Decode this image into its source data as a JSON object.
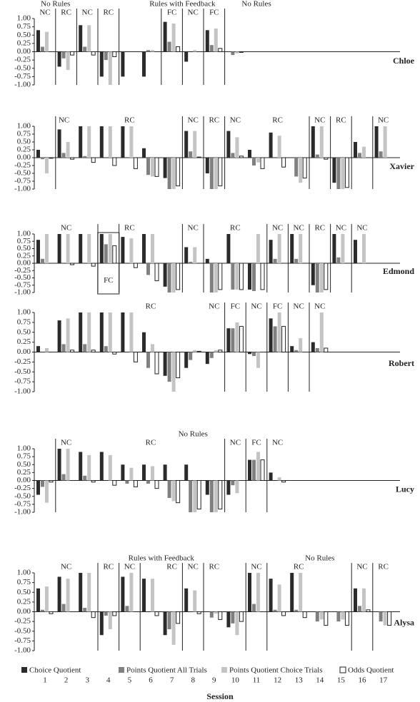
{
  "chart_data": [
    {
      "type": "bar",
      "participant": "Chloe",
      "ylim": [
        -1,
        1
      ],
      "yticks": [
        {
          "value": 1,
          "label": "1.00"
        },
        {
          "value": 0.75,
          "label": "0.75"
        },
        {
          "value": 0.5,
          "label": "0.50"
        },
        {
          "value": 0.25,
          "label": "0.25"
        },
        {
          "value": 0,
          "label": "0.00"
        },
        {
          "value": -0.25,
          "label": "-0.25"
        },
        {
          "value": -0.5,
          "label": "-0.50"
        },
        {
          "value": -0.75,
          "label": "-0.75"
        },
        {
          "value": -1,
          "label": "-1.00"
        }
      ],
      "phase_headers": [
        {
          "text": "No Rules",
          "x": 1.5
        },
        {
          "text": "Rules with Feedback",
          "x": 7.5
        },
        {
          "text": "No Rules",
          "x": 11
        }
      ],
      "annotations": [
        {
          "text": "NC",
          "x": 1
        },
        {
          "text": "RC",
          "x": 2
        },
        {
          "text": "NC",
          "x": 3
        },
        {
          "text": "RC",
          "x": 4
        },
        {
          "text": "FC",
          "x": 7
        },
        {
          "text": "NC",
          "x": 8
        },
        {
          "text": "FC",
          "x": 9
        }
      ],
      "series": [
        {
          "color": "#2b2b2b",
          "values": [
            0.65,
            -0.45,
            0.8,
            -0.75,
            -0.75,
            -0.75,
            0.9,
            -0.3,
            0.65,
            0,
            null,
            null,
            null,
            null,
            null,
            null,
            null
          ]
        },
        {
          "color": "#808080",
          "values": [
            0.15,
            -0.2,
            0.15,
            -0.25,
            0,
            0.05,
            0.3,
            0,
            0.2,
            -0.1,
            null,
            null,
            null,
            null,
            null,
            null,
            null
          ]
        },
        {
          "color": "#c4c4c4",
          "values": [
            0.6,
            -0.55,
            0.8,
            -1,
            0,
            0.05,
            0.85,
            0.05,
            0.7,
            -0.05,
            null,
            null,
            null,
            null,
            null,
            null,
            null
          ]
        },
        {
          "color": "#ffffff",
          "values": [
            0,
            -0.1,
            -0.1,
            -0.15,
            0,
            0,
            0.15,
            0,
            0.1,
            -0.02,
            null,
            null,
            null,
            null,
            null,
            null,
            null
          ]
        }
      ]
    },
    {
      "type": "bar",
      "participant": "Xavier",
      "ylim": [
        -1,
        1
      ],
      "yticks": [
        {
          "value": 1,
          "label": "1.00"
        },
        {
          "value": 0.75,
          "label": "0.75"
        },
        {
          "value": 0.5,
          "label": "0.50"
        },
        {
          "value": 0.25,
          "label": "0.25"
        },
        {
          "value": 0,
          "label": "0.00"
        },
        {
          "value": -0.25,
          "label": "-0.25"
        },
        {
          "value": -0.5,
          "label": "-0.50"
        },
        {
          "value": -0.75,
          "label": "-0.75"
        },
        {
          "value": -1,
          "label": "-1.00"
        }
      ],
      "annotations": [
        {
          "text": "NC",
          "x": 1.9
        },
        {
          "text": "RC",
          "x": 5
        },
        {
          "text": "NC",
          "x": 8
        },
        {
          "text": "RC",
          "x": 9
        },
        {
          "text": "NC",
          "x": 10
        },
        {
          "text": "RC",
          "x": 12
        },
        {
          "text": "NC",
          "x": 14
        },
        {
          "text": "RC",
          "x": 15
        },
        {
          "text": "NC",
          "x": 17
        }
      ],
      "series": [
        {
          "color": "#2b2b2b",
          "values": [
            0.25,
            0.9,
            1,
            1,
            1,
            0.3,
            -0.65,
            0.85,
            -0.5,
            0.85,
            0.25,
            0.8,
            0,
            1,
            -0.8,
            0.5,
            1
          ]
        },
        {
          "color": "#808080",
          "values": [
            -0.05,
            0.15,
            0.05,
            0,
            0,
            -0.55,
            -1,
            0.2,
            -1,
            0.15,
            -0.25,
            0,
            -0.6,
            0.1,
            -1,
            0.15,
            0.2
          ]
        },
        {
          "color": "#c4c4c4",
          "values": [
            -0.5,
            0.5,
            1,
            1,
            1,
            -0.6,
            -1,
            0.85,
            -1,
            0.65,
            -0.15,
            0.7,
            -0.8,
            1,
            -1,
            0.35,
            1
          ]
        },
        {
          "color": "#ffffff",
          "values": [
            -0.02,
            -0.05,
            -0.15,
            -0.25,
            -0.35,
            -0.6,
            -0.9,
            0.02,
            -0.9,
            0.05,
            -0.35,
            -0.3,
            -0.65,
            -0.05,
            -0.95,
            0,
            0
          ]
        }
      ]
    },
    {
      "type": "bar",
      "participant": "Edmond",
      "ylim": [
        -1,
        1
      ],
      "yticks": [
        {
          "value": 1,
          "label": "1.00"
        },
        {
          "value": 0.75,
          "label": "0.75"
        },
        {
          "value": 0.5,
          "label": "0.50"
        },
        {
          "value": 0.25,
          "label": "0.25"
        },
        {
          "value": 0,
          "label": "0.00"
        },
        {
          "value": -0.25,
          "label": "-0.25"
        },
        {
          "value": -0.5,
          "label": "-0.50"
        },
        {
          "value": -0.75,
          "label": "-0.75"
        },
        {
          "value": -1,
          "label": "-1.00"
        }
      ],
      "annotations": [
        {
          "text": "NC",
          "x": 2
        },
        {
          "text": "RC",
          "x": 5
        },
        {
          "text": "NC",
          "x": 8
        },
        {
          "text": "RC",
          "x": 10
        },
        {
          "text": "NC",
          "x": 12
        },
        {
          "text": "NC",
          "x": 13
        },
        {
          "text": "RC",
          "x": 14
        },
        {
          "text": "NC",
          "x": 15
        },
        {
          "text": "NC",
          "x": 16
        }
      ],
      "boxed_annotation": {
        "text": "FC",
        "x": 4
      },
      "series": [
        {
          "color": "#2b2b2b",
          "values": [
            0.8,
            1,
            1,
            1,
            0.9,
            1,
            -0.8,
            0.55,
            0.15,
            1,
            -0.9,
            0.8,
            1,
            -0.75,
            1,
            0.8,
            null
          ]
        },
        {
          "color": "#808080",
          "values": [
            0.15,
            0,
            0,
            0.65,
            0,
            -0.4,
            -1,
            0.05,
            -1,
            -0.9,
            -0.95,
            0.15,
            0.15,
            -1,
            0.2,
            0,
            null
          ]
        },
        {
          "color": "#c4c4c4",
          "values": [
            1,
            1,
            1,
            1,
            0.85,
            1,
            -1,
            0.55,
            -1,
            -0.9,
            1,
            1,
            1,
            -1,
            1,
            1,
            null
          ]
        },
        {
          "color": "#ffffff",
          "values": [
            0,
            -0.05,
            -0.1,
            0.6,
            -0.15,
            -0.6,
            -0.9,
            0,
            -0.9,
            -0.9,
            -0.9,
            0,
            0,
            -0.9,
            0,
            0,
            null
          ]
        }
      ]
    },
    {
      "type": "bar",
      "participant": "Robert",
      "ylim": [
        -1,
        1
      ],
      "yticks": [
        {
          "value": 1,
          "label": "1.00"
        },
        {
          "value": 0.75,
          "label": "0.75"
        },
        {
          "value": 0.5,
          "label": "0.50"
        },
        {
          "value": 0.25,
          "label": "0.25"
        },
        {
          "value": 0,
          "label": "0.00"
        },
        {
          "value": -0.25,
          "label": "-0.25"
        },
        {
          "value": -0.5,
          "label": "-0.50"
        },
        {
          "value": -0.75,
          "label": "-0.75"
        },
        {
          "value": -1,
          "label": "-1.00"
        }
      ],
      "annotations": [
        {
          "text": "RC",
          "x": 6
        },
        {
          "text": "NC",
          "x": 9
        },
        {
          "text": "FC",
          "x": 10
        },
        {
          "text": "NC",
          "x": 11
        },
        {
          "text": "FC",
          "x": 12
        },
        {
          "text": "NC",
          "x": 13
        },
        {
          "text": "NC",
          "x": 14
        }
      ],
      "series": [
        {
          "color": "#2b2b2b",
          "values": [
            0.15,
            0.8,
            1,
            1,
            1,
            0.5,
            -0.6,
            -0.4,
            -0.3,
            0.6,
            -0.05,
            0.85,
            0.15,
            0.25,
            null,
            null,
            null
          ]
        },
        {
          "color": "#808080",
          "values": [
            0,
            0.2,
            0.2,
            0.15,
            0,
            -0.4,
            -0.75,
            -0.2,
            -0.15,
            0.6,
            -0.1,
            0.65,
            0.05,
            0.1,
            null,
            null,
            null
          ]
        },
        {
          "color": "#c4c4c4",
          "values": [
            0.1,
            0.85,
            1,
            1,
            1,
            0.2,
            -1,
            0.05,
            0.05,
            0.75,
            -0.4,
            1,
            0.35,
            1,
            null,
            null,
            null
          ]
        },
        {
          "color": "#ffffff",
          "values": [
            0,
            0.05,
            0.05,
            -0.05,
            -0.25,
            -0.55,
            -0.65,
            0.02,
            0.05,
            0.65,
            0,
            0.65,
            0,
            0.1,
            null,
            null,
            null
          ]
        }
      ]
    },
    {
      "type": "bar",
      "participant": "Lucy",
      "ylim": [
        -1,
        1
      ],
      "yticks": [
        {
          "value": 1,
          "label": "1.00"
        },
        {
          "value": 0.75,
          "label": "0.75"
        },
        {
          "value": 0.5,
          "label": "0.50"
        },
        {
          "value": 0.25,
          "label": "0.25"
        },
        {
          "value": 0,
          "label": "0.00"
        },
        {
          "value": -0.25,
          "label": "-0.25"
        },
        {
          "value": -0.5,
          "label": "-0.50"
        },
        {
          "value": -0.75,
          "label": "-0.75"
        },
        {
          "value": -1,
          "label": "-1.00"
        }
      ],
      "phase_headers": [
        {
          "text": "No Rules",
          "x": 8
        }
      ],
      "annotations": [
        {
          "text": "NC",
          "x": 2
        },
        {
          "text": "RC",
          "x": 6
        },
        {
          "text": "NC",
          "x": 10
        },
        {
          "text": "FC",
          "x": 11
        },
        {
          "text": "NC",
          "x": 12
        }
      ],
      "series": [
        {
          "color": "#2b2b2b",
          "values": [
            -0.45,
            1,
            0.9,
            0.9,
            0.5,
            0.5,
            0.5,
            0.5,
            -0.45,
            -0.45,
            0.65,
            0.25,
            null,
            null,
            null,
            null,
            null
          ]
        },
        {
          "color": "#808080",
          "values": [
            -0.2,
            0.2,
            0.15,
            0,
            -0.1,
            -0.1,
            -0.55,
            -1,
            -1,
            -0.15,
            0.65,
            0,
            null,
            null,
            null,
            null,
            null
          ]
        },
        {
          "color": "#c4c4c4",
          "values": [
            -0.7,
            1,
            0.8,
            0.8,
            0.4,
            0.45,
            -0.65,
            -1,
            -1,
            -0.4,
            0.9,
            0.1,
            null,
            null,
            null,
            null,
            null
          ]
        },
        {
          "color": "#ffffff",
          "values": [
            -0.05,
            0,
            -0.05,
            -0.15,
            -0.2,
            -0.25,
            -0.7,
            -0.9,
            -0.9,
            0,
            0.65,
            -0.05,
            null,
            null,
            null,
            null,
            null
          ]
        }
      ]
    },
    {
      "type": "bar",
      "participant": "Alysa",
      "ylim": [
        -1,
        1
      ],
      "yticks": [
        {
          "value": 1,
          "label": "1.00"
        },
        {
          "value": 0.75,
          "label": "0.75"
        },
        {
          "value": 0.5,
          "label": "0.50"
        },
        {
          "value": 0.25,
          "label": "0.25"
        },
        {
          "value": 0,
          "label": "0.00"
        },
        {
          "value": -0.25,
          "label": "-0.25"
        },
        {
          "value": -0.5,
          "label": "-0.50"
        },
        {
          "value": -0.75,
          "label": "-0.75"
        },
        {
          "value": -1,
          "label": "-1.00"
        }
      ],
      "phase_headers": [
        {
          "text": "Rules with Feedback",
          "x": 6.5
        },
        {
          "text": "No Rules",
          "x": 14
        }
      ],
      "annotations": [
        {
          "text": "NC",
          "x": 2
        },
        {
          "text": "RC",
          "x": 4
        },
        {
          "text": "NC",
          "x": 5
        },
        {
          "text": "RC",
          "x": 7
        },
        {
          "text": "NC",
          "x": 8
        },
        {
          "text": "RC",
          "x": 9
        },
        {
          "text": "NC",
          "x": 11
        },
        {
          "text": "RC",
          "x": 13
        },
        {
          "text": "NC",
          "x": 16
        },
        {
          "text": "RC",
          "x": 17
        }
      ],
      "categories": [
        1,
        2,
        3,
        4,
        5,
        6,
        7,
        8,
        9,
        10,
        11,
        12,
        13,
        14,
        15,
        16,
        17
      ],
      "x_title": "Session",
      "series": [
        {
          "name": "Choice Quotient",
          "color": "#2b2b2b",
          "values": [
            0.6,
            0.9,
            1,
            -0.6,
            0.9,
            0.85,
            -0.6,
            0.6,
            0,
            -0.4,
            1,
            0.85,
            1,
            0,
            0,
            0.6,
            0
          ]
        },
        {
          "name": "Points Quotient All Trials",
          "color": "#808080",
          "values": [
            0.05,
            0.2,
            0.1,
            -0.1,
            0.15,
            0,
            -0.45,
            0,
            -0.15,
            -0.3,
            0.2,
            0.05,
            0.05,
            -0.25,
            -0.25,
            0.15,
            -0.25
          ]
        },
        {
          "name": "Points Quotient Choice Trials",
          "color": "#c4c4c4",
          "values": [
            0.65,
            0.85,
            1,
            -0.45,
            1,
            0.85,
            -0.85,
            0.55,
            -0.05,
            -0.6,
            1,
            0.7,
            1,
            -0.2,
            -0.2,
            0.6,
            -0.35
          ]
        },
        {
          "name": "Odds Quotient",
          "color": "#ffffff",
          "values": [
            -0.05,
            0,
            -0.15,
            -0.1,
            0,
            -0.1,
            -0.3,
            -0.05,
            -0.2,
            -0.25,
            0,
            -0.1,
            -0.15,
            -0.35,
            -0.35,
            0.05,
            -0.35
          ]
        }
      ]
    }
  ]
}
